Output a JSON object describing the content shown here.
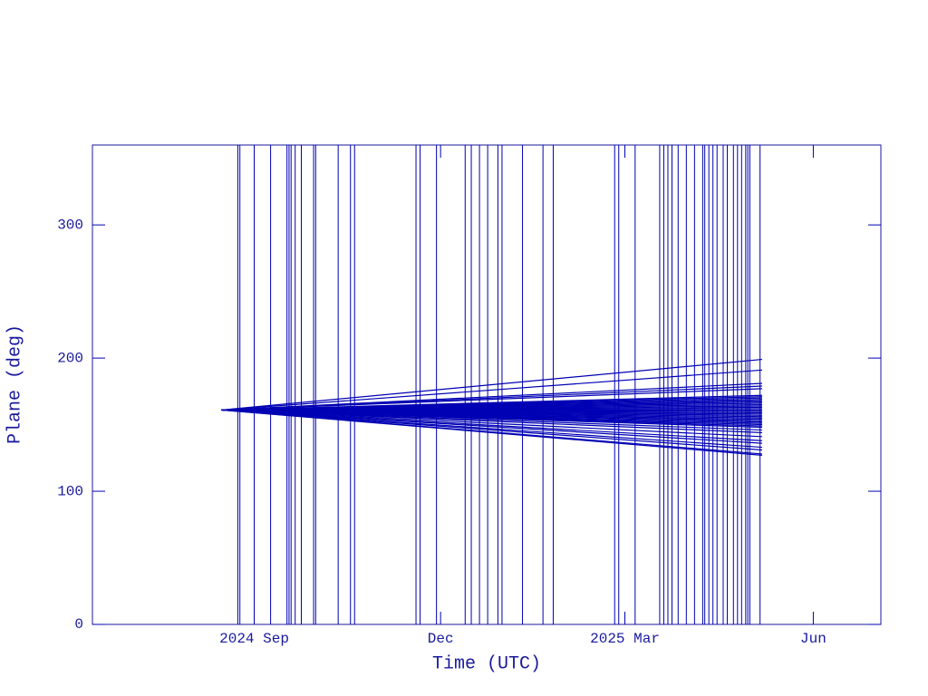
{
  "chart_data": {
    "type": "line",
    "xlabel": "Time (UTC)",
    "ylabel": "Plane (deg)",
    "color": "#0000b4",
    "xlim": [
      -79,
      306
    ],
    "xticks": [
      {
        "value": 0,
        "label": "2024 Sep"
      },
      {
        "value": 91,
        "label": "Dec"
      },
      {
        "value": 181,
        "label": "2025 Mar"
      },
      {
        "value": 273,
        "label": "Jun"
      }
    ],
    "ylim": [
      0,
      360
    ],
    "yticks": [
      0,
      100,
      200,
      300
    ],
    "vertical_lines": [
      -8,
      -7,
      0,
      8,
      16,
      17,
      18,
      20,
      23,
      29,
      30,
      41,
      47,
      49,
      79,
      81,
      89,
      103,
      106,
      110,
      114,
      119,
      121,
      131,
      141,
      146,
      176,
      178,
      186,
      198,
      200,
      202,
      204,
      207,
      211,
      215,
      219,
      220,
      222,
      224,
      226,
      229,
      231,
      234,
      236,
      238,
      240,
      241,
      242,
      247
    ],
    "series": [
      {
        "x": [
          -16,
          248
        ],
        "values": [
          161,
          199
        ]
      },
      {
        "x": [
          -16,
          248
        ],
        "values": [
          161,
          191
        ]
      },
      {
        "x": [
          -16,
          248
        ],
        "values": [
          161,
          181
        ]
      },
      {
        "x": [
          -16,
          248
        ],
        "values": [
          161,
          179
        ]
      },
      {
        "x": [
          -16,
          248
        ],
        "values": [
          161,
          177
        ]
      },
      {
        "x": [
          -16,
          248
        ],
        "values": [
          161,
          172
        ]
      },
      {
        "x": [
          -16,
          248
        ],
        "values": [
          161,
          171
        ]
      },
      {
        "x": [
          -16,
          248
        ],
        "values": [
          161,
          170
        ]
      },
      {
        "x": [
          -16,
          248
        ],
        "values": [
          161,
          169
        ]
      },
      {
        "x": [
          -16,
          248
        ],
        "values": [
          161,
          168
        ]
      },
      {
        "x": [
          -16,
          248
        ],
        "values": [
          161,
          167
        ]
      },
      {
        "x": [
          -16,
          248
        ],
        "values": [
          161,
          166
        ]
      },
      {
        "x": [
          -16,
          248
        ],
        "values": [
          161,
          165
        ]
      },
      {
        "x": [
          -16,
          248
        ],
        "values": [
          161,
          164
        ]
      },
      {
        "x": [
          -16,
          248
        ],
        "values": [
          161,
          163
        ]
      },
      {
        "x": [
          -16,
          248
        ],
        "values": [
          161,
          162
        ]
      },
      {
        "x": [
          -16,
          248
        ],
        "values": [
          161,
          161
        ]
      },
      {
        "x": [
          -16,
          248
        ],
        "values": [
          161,
          160
        ]
      },
      {
        "x": [
          -16,
          248
        ],
        "values": [
          161,
          159
        ]
      },
      {
        "x": [
          -16,
          248
        ],
        "values": [
          161,
          158
        ]
      },
      {
        "x": [
          -16,
          248
        ],
        "values": [
          161,
          157
        ]
      },
      {
        "x": [
          -16,
          248
        ],
        "values": [
          161,
          156
        ]
      },
      {
        "x": [
          -16,
          248
        ],
        "values": [
          161,
          155
        ]
      },
      {
        "x": [
          -16,
          248
        ],
        "values": [
          161,
          154
        ]
      },
      {
        "x": [
          -16,
          248
        ],
        "values": [
          161,
          153
        ]
      },
      {
        "x": [
          -16,
          248
        ],
        "values": [
          161,
          152
        ]
      },
      {
        "x": [
          -16,
          248
        ],
        "values": [
          161,
          151
        ]
      },
      {
        "x": [
          -16,
          248
        ],
        "values": [
          161,
          150
        ]
      },
      {
        "x": [
          -16,
          248
        ],
        "values": [
          161,
          149
        ]
      },
      {
        "x": [
          -16,
          248
        ],
        "values": [
          161,
          148
        ]
      },
      {
        "x": [
          -16,
          248
        ],
        "values": [
          161,
          146
        ]
      },
      {
        "x": [
          -16,
          248
        ],
        "values": [
          161,
          144
        ]
      },
      {
        "x": [
          -16,
          248
        ],
        "values": [
          161,
          141
        ]
      },
      {
        "x": [
          -16,
          248
        ],
        "values": [
          161,
          138
        ]
      },
      {
        "x": [
          -16,
          248
        ],
        "values": [
          161,
          136
        ]
      },
      {
        "x": [
          -16,
          248
        ],
        "values": [
          161,
          133
        ]
      },
      {
        "x": [
          -16,
          248
        ],
        "values": [
          161,
          131
        ]
      },
      {
        "x": [
          -16,
          248
        ],
        "values": [
          161,
          128
        ]
      },
      {
        "x": [
          -16,
          248
        ],
        "values": [
          161,
          127
        ]
      }
    ]
  }
}
